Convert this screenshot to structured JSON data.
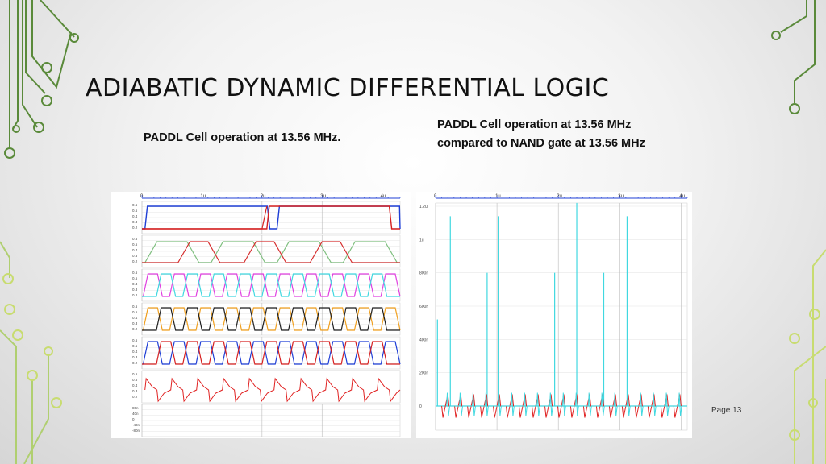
{
  "slide": {
    "title": "ADIABATIC DYNAMIC DIFFERENTIAL LOGIC",
    "caption_left": "PADDL Cell operation at 13.56 MHz.",
    "caption_right": "PADDL Cell operation at 13.56 MHz compared to NAND gate at 13.56 MHz",
    "page_label": "Page 13"
  },
  "left_plot": {
    "x_ticks": [
      "0",
      "1u",
      "2u",
      "3u",
      "4u"
    ],
    "rail_ticks": [
      "0.6",
      "0.5",
      "0.4",
      "0.3",
      "0.2"
    ],
    "current_ticks": [
      "80n",
      "40n",
      "0",
      "-40n",
      "-80n"
    ],
    "colors": [
      "#1f3fd6",
      "#d62020",
      "#7fbf7f",
      "#d63030",
      "#e040e0",
      "#40d8e0",
      "#f0a020",
      "#202020",
      "#1f3fd6",
      "#d62020",
      "#e02020"
    ]
  },
  "right_plot": {
    "x_ticks": [
      "0",
      "1u",
      "2u",
      "3u",
      "4u"
    ],
    "y_ticks": [
      "1.2u",
      "1u",
      "800n",
      "600n",
      "400n",
      "200n",
      "0"
    ],
    "colors": [
      "#40d8e0",
      "#e02020",
      "#333333"
    ]
  }
}
